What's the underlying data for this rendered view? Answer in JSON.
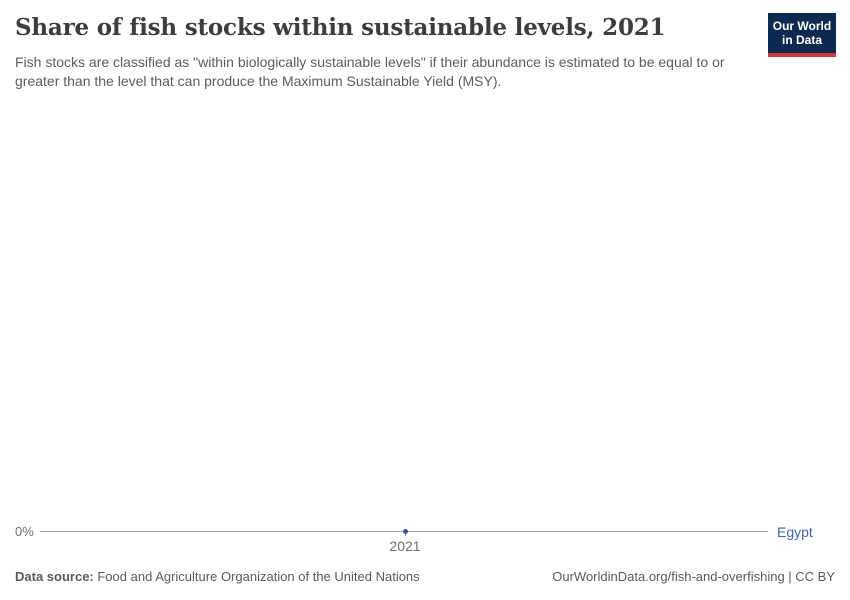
{
  "header": {
    "title": "Share of fish stocks within sustainable levels, 2021",
    "subtitle": "Fish stocks are classified as \"within biologically sustainable levels\" if their abundance is estimated to be equal to or greater than the level that can produce the Maximum Sustainable Yield (MSY).",
    "logo": {
      "line1": "Our World",
      "line2": "in Data",
      "background_color": "#0c2950",
      "accent_color": "#cf3a3e"
    }
  },
  "chart_data": {
    "type": "line",
    "title": "Share of fish stocks within sustainable levels, 2021",
    "x": [
      2021
    ],
    "series": [
      {
        "name": "Egypt",
        "values": [
          0
        ],
        "color": "#4166a5"
      }
    ],
    "unit": "%",
    "xlabel": "",
    "ylabel": "",
    "x_ticks": [
      "2021"
    ],
    "y_ticks": [
      "0%"
    ],
    "ylim": [
      0,
      0
    ],
    "grid": false,
    "legend_position": "right-of-line"
  },
  "footer": {
    "source_label": "Data source:",
    "source_text": " Food and Agriculture Organization of the United Nations",
    "credit": "OurWorldinData.org/fish-and-overfishing | CC BY"
  },
  "colors": {
    "title_text": "#3d3d3d",
    "subtitle_text": "#5c5c5c",
    "axis_line": "#a6a6a6",
    "axis_label_text": "#6e6e6e",
    "entity_blue": "#4166a5",
    "marker_blue": "#3a5a9b",
    "footer_text": "#5a5a5a"
  }
}
